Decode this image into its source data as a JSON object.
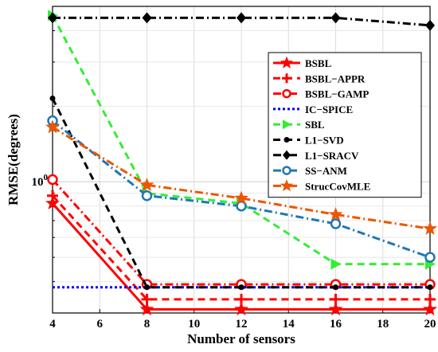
{
  "chart_data": {
    "type": "line",
    "xlabel": "Number of sensors",
    "ylabel": "RMSE(degrees)",
    "y_scale": "log",
    "xlim": [
      4,
      20
    ],
    "ylim": [
      0.3,
      5.0
    ],
    "xticks": [
      4,
      6,
      8,
      10,
      12,
      14,
      16,
      18,
      20
    ],
    "ytick_label": "10^0",
    "grid": true,
    "legend_position": "top-right",
    "x": [
      4,
      8,
      12,
      16,
      20
    ],
    "series": [
      {
        "name": "BSBL",
        "color": "#ff0000",
        "dash": "solid",
        "marker": "star",
        "values": [
          0.82,
          0.31,
          0.31,
          0.31,
          0.31
        ]
      },
      {
        "name": "BSBL−APPR",
        "color": "#ff0000",
        "dash": "dash",
        "marker": "plus",
        "values": [
          0.88,
          0.34,
          0.34,
          0.34,
          0.34
        ]
      },
      {
        "name": "BSBL−GAMP",
        "color": "#ff0000",
        "dash": "dashdot",
        "marker": "circle",
        "values": [
          1.02,
          0.39,
          0.39,
          0.39,
          0.39
        ]
      },
      {
        "name": "IC−SPICE",
        "color": "#0000ff",
        "dash": "dot",
        "marker": "none",
        "values": [
          0.38,
          0.38,
          0.38,
          0.38,
          0.38
        ]
      },
      {
        "name": "SBL",
        "color": "#33ee33",
        "dash": "dash",
        "marker": "triangle-right",
        "values": [
          4.6,
          0.9,
          0.82,
          0.47,
          0.47
        ]
      },
      {
        "name": "L1−SVD",
        "color": "#000000",
        "dash": "dash",
        "marker": "dot",
        "values": [
          2.15,
          0.38,
          0.38,
          0.38,
          0.38
        ]
      },
      {
        "name": "L1−SRACV",
        "color": "#000000",
        "dash": "dashdot",
        "marker": "diamond",
        "values": [
          4.5,
          4.5,
          4.5,
          4.5,
          4.2
        ]
      },
      {
        "name": "SS−ANM",
        "color": "#1f77b4",
        "dash": "dashdot",
        "marker": "circle",
        "values": [
          1.75,
          0.88,
          0.8,
          0.68,
          0.5
        ]
      },
      {
        "name": "StrucCovMLE",
        "color": "#ee5500",
        "dash": "dashdot",
        "marker": "star",
        "values": [
          1.65,
          0.97,
          0.86,
          0.74,
          0.65
        ]
      }
    ]
  }
}
